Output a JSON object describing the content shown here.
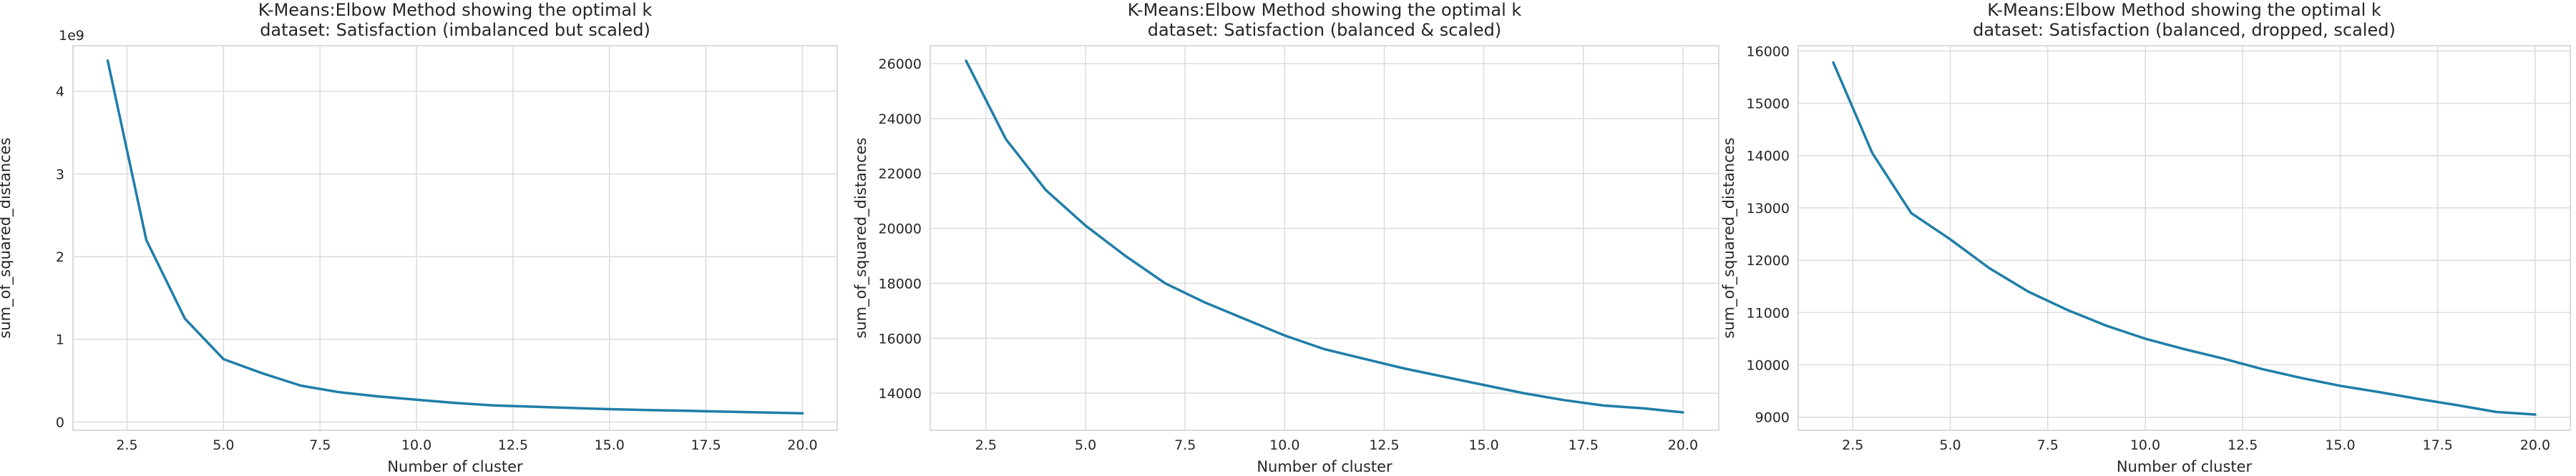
{
  "chart_data": [
    {
      "type": "line",
      "title": "K-Means:Elbow Method showing the optimal k",
      "subtitle": "dataset: Satisfaction (imbalanced but scaled)",
      "xlabel": "Number of cluster",
      "ylabel": "sum_of_squared_distances",
      "y_offset_label": "1e9",
      "xlim": [
        1.1,
        20.9
      ],
      "ylim": [
        -0.1,
        4.55
      ],
      "x_ticks": [
        2.5,
        5.0,
        7.5,
        10.0,
        12.5,
        15.0,
        17.5,
        20.0
      ],
      "x_tick_labels": [
        "2.5",
        "5.0",
        "7.5",
        "10.0",
        "12.5",
        "15.0",
        "17.5",
        "20.0"
      ],
      "y_ticks": [
        0,
        1,
        2,
        3,
        4
      ],
      "y_tick_labels": [
        "0",
        "1",
        "2",
        "3",
        "4"
      ],
      "grid": true,
      "color": "#1f7ea8",
      "x": [
        2,
        3,
        4,
        5,
        6,
        7,
        8,
        9,
        10,
        11,
        12,
        13,
        14,
        15,
        16,
        17,
        18,
        19,
        20
      ],
      "y": [
        4.37,
        2.2,
        1.25,
        0.76,
        0.59,
        0.44,
        0.36,
        0.31,
        0.27,
        0.23,
        0.2,
        0.185,
        0.17,
        0.155,
        0.145,
        0.135,
        0.125,
        0.115,
        0.105
      ]
    },
    {
      "type": "line",
      "title": "K-Means:Elbow Method showing the optimal k",
      "subtitle": "dataset: Satisfaction (balanced & scaled)",
      "xlabel": "Number of cluster",
      "ylabel": "sum_of_squared_distances",
      "y_offset_label": "",
      "xlim": [
        1.1,
        20.9
      ],
      "ylim": [
        12650,
        26650
      ],
      "x_ticks": [
        2.5,
        5.0,
        7.5,
        10.0,
        12.5,
        15.0,
        17.5,
        20.0
      ],
      "x_tick_labels": [
        "2.5",
        "5.0",
        "7.5",
        "10.0",
        "12.5",
        "15.0",
        "17.5",
        "20.0"
      ],
      "y_ticks": [
        14000,
        16000,
        18000,
        20000,
        22000,
        24000,
        26000
      ],
      "y_tick_labels": [
        "14000",
        "16000",
        "18000",
        "20000",
        "22000",
        "24000",
        "26000"
      ],
      "grid": true,
      "color": "#1f7ea8",
      "x": [
        2,
        3,
        4,
        5,
        6,
        7,
        8,
        9,
        10,
        11,
        12,
        13,
        14,
        15,
        16,
        17,
        18,
        19,
        20
      ],
      "y": [
        26100,
        23250,
        21400,
        20100,
        19000,
        18000,
        17300,
        16700,
        16100,
        15600,
        15250,
        14900,
        14600,
        14300,
        14000,
        13750,
        13550,
        13450,
        13300
      ]
    },
    {
      "type": "line",
      "title": "K-Means:Elbow Method showing the optimal k",
      "subtitle": "dataset: Satisfaction (balanced, dropped, scaled)",
      "xlabel": "Number of cluster",
      "ylabel": "sum_of_squared_distances",
      "y_offset_label": "",
      "xlim": [
        1.1,
        20.9
      ],
      "ylim": [
        8750,
        16100
      ],
      "x_ticks": [
        2.5,
        5.0,
        7.5,
        10.0,
        12.5,
        15.0,
        17.5,
        20.0
      ],
      "x_tick_labels": [
        "2.5",
        "5.0",
        "7.5",
        "10.0",
        "12.5",
        "15.0",
        "17.5",
        "20.0"
      ],
      "y_ticks": [
        9000,
        10000,
        11000,
        12000,
        13000,
        14000,
        15000,
        16000
      ],
      "y_tick_labels": [
        "9000",
        "10000",
        "11000",
        "12000",
        "13000",
        "14000",
        "15000",
        "16000"
      ],
      "grid": true,
      "color": "#1f7ea8",
      "x": [
        2,
        3,
        4,
        5,
        6,
        7,
        8,
        9,
        10,
        11,
        12,
        13,
        14,
        15,
        16,
        17,
        18,
        19,
        20
      ],
      "y": [
        15780,
        14050,
        12900,
        12400,
        11850,
        11400,
        11050,
        10750,
        10500,
        10300,
        10120,
        9920,
        9750,
        9600,
        9480,
        9350,
        9230,
        9100,
        9050
      ]
    }
  ]
}
